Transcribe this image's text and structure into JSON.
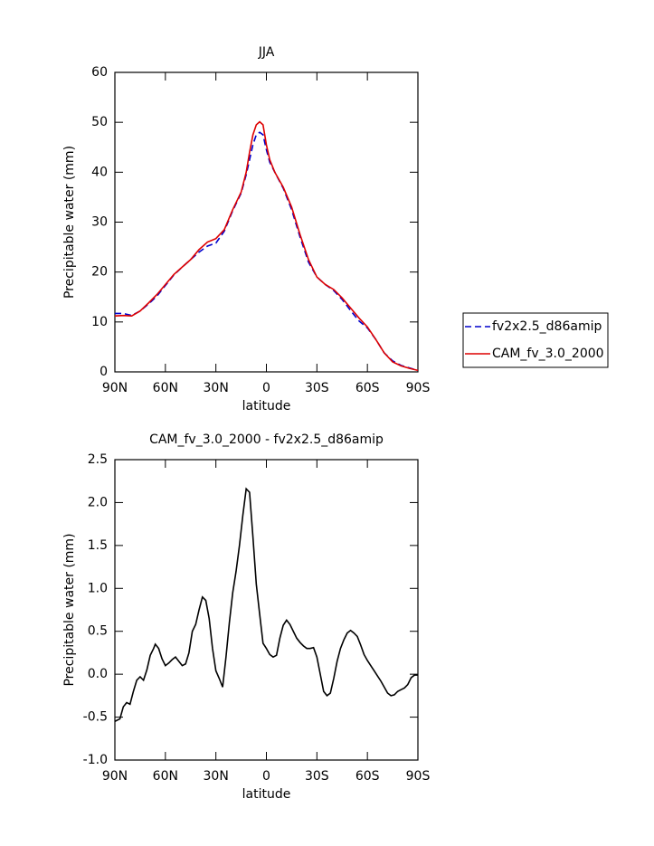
{
  "chart_data": [
    {
      "type": "line",
      "title": "JJA",
      "xlabel": "latitude",
      "ylabel": "Precipitable water (mm)",
      "x": [
        90,
        85,
        80,
        75,
        70,
        65,
        60,
        55,
        50,
        45,
        40,
        35,
        30,
        25,
        20,
        15,
        12,
        10,
        8,
        6,
        4,
        2,
        0,
        -2,
        -5,
        -10,
        -15,
        -20,
        -25,
        -30,
        -35,
        -40,
        -45,
        -50,
        -55,
        -60,
        -65,
        -70,
        -75,
        -80,
        -85,
        -90
      ],
      "series": [
        {
          "name": "fv2x2.5_d86amip",
          "color": "#0000cc",
          "dashed": true,
          "values": [
            11.7,
            11.7,
            11.3,
            12.2,
            13.6,
            15.2,
            17.3,
            19.4,
            21,
            22.5,
            24,
            25.2,
            25.8,
            28.2,
            32.3,
            35.8,
            39.5,
            42.5,
            45.5,
            47.5,
            48,
            47.5,
            44.5,
            42,
            40,
            36.8,
            32.5,
            27,
            22,
            19,
            17.5,
            16.3,
            14.5,
            12.3,
            10.2,
            8.8,
            6.5,
            3.8,
            2.2,
            1.3,
            0.8,
            0.3
          ]
        },
        {
          "name": "CAM_fv_3.0_2000",
          "color": "#dd0000",
          "dashed": false,
          "values": [
            11.2,
            11.3,
            11.2,
            12.2,
            13.8,
            15.5,
            17.5,
            19.5,
            21,
            22.5,
            24.5,
            26,
            26.7,
            28.5,
            32.5,
            36,
            40,
            44,
            47.5,
            49.5,
            50.1,
            49.5,
            45.5,
            42.5,
            40,
            37,
            33,
            27.5,
            22.5,
            19,
            17.5,
            16.5,
            14.8,
            12.8,
            10.8,
            9,
            6.5,
            3.8,
            2,
            1.2,
            0.7,
            0.3
          ]
        }
      ],
      "xlim": [
        90,
        -90
      ],
      "xticks": [
        {
          "value": 90,
          "label": "90N"
        },
        {
          "value": 60,
          "label": "60N"
        },
        {
          "value": 30,
          "label": "30N"
        },
        0,
        {
          "value": -30,
          "label": "30S"
        },
        {
          "value": -60,
          "label": "60S"
        },
        {
          "value": -90,
          "label": "90S"
        }
      ],
      "ylim": [
        0,
        60
      ],
      "yticks": [
        0,
        10,
        20,
        30,
        40,
        50,
        60
      ],
      "legend": "right"
    },
    {
      "type": "line",
      "title": "CAM_fv_3.0_2000 - fv2x2.5_d86amip",
      "xlabel": "latitude",
      "ylabel": "Precipitable water (mm)",
      "x": [
        90,
        87,
        85,
        83,
        81,
        79,
        77,
        75,
        73,
        71,
        69,
        67,
        66,
        64,
        62,
        60,
        58,
        56,
        54,
        52,
        50,
        48,
        46,
        44,
        42,
        40,
        38,
        36,
        34,
        32,
        30,
        28,
        26,
        24,
        22,
        20,
        18,
        16,
        14,
        12,
        10,
        8,
        6,
        4,
        2,
        0,
        -2,
        -4,
        -6,
        -8,
        -10,
        -12,
        -14,
        -16,
        -18,
        -20,
        -22,
        -24,
        -26,
        -28,
        -30,
        -32,
        -34,
        -36,
        -38,
        -40,
        -42,
        -44,
        -46,
        -48,
        -50,
        -52,
        -54,
        -56,
        -58,
        -60,
        -62,
        -64,
        -66,
        -68,
        -70,
        -72,
        -74,
        -76,
        -78,
        -80,
        -82,
        -84,
        -86,
        -88,
        -90
      ],
      "values": [
        -0.55,
        -0.52,
        -0.38,
        -0.33,
        -0.35,
        -0.2,
        -0.07,
        -0.03,
        -0.07,
        0.05,
        0.22,
        0.3,
        0.35,
        0.3,
        0.18,
        0.1,
        0.13,
        0.17,
        0.2,
        0.15,
        0.1,
        0.12,
        0.25,
        0.5,
        0.58,
        0.75,
        0.9,
        0.86,
        0.65,
        0.3,
        0.04,
        -0.05,
        -0.15,
        0.2,
        0.6,
        0.95,
        1.2,
        1.5,
        1.85,
        2.16,
        2.12,
        1.6,
        1.05,
        0.7,
        0.36,
        0.3,
        0.23,
        0.2,
        0.22,
        0.42,
        0.57,
        0.63,
        0.58,
        0.5,
        0.42,
        0.37,
        0.33,
        0.3,
        0.3,
        0.31,
        0.2,
        0.0,
        -0.2,
        -0.25,
        -0.22,
        -0.05,
        0.15,
        0.3,
        0.4,
        0.48,
        0.51,
        0.48,
        0.44,
        0.34,
        0.23,
        0.16,
        0.1,
        0.04,
        -0.02,
        -0.08,
        -0.15,
        -0.22,
        -0.25,
        -0.24,
        -0.2,
        -0.18,
        -0.16,
        -0.12,
        -0.04,
        -0.01,
        -0.01
      ],
      "color": "#000000",
      "xlim": [
        90,
        -90
      ],
      "xticks": [
        {
          "value": 90,
          "label": "90N"
        },
        {
          "value": 60,
          "label": "60N"
        },
        {
          "value": 30,
          "label": "30N"
        },
        0,
        {
          "value": -30,
          "label": "30S"
        },
        {
          "value": -60,
          "label": "60S"
        },
        {
          "value": -90,
          "label": "90S"
        }
      ],
      "ylim": [
        -1,
        2.5
      ],
      "yticks": [
        {
          "value": -1,
          "label": "-1.0"
        },
        -0.5,
        {
          "value": 0,
          "label": "0.0"
        },
        0.5,
        {
          "value": 1,
          "label": "1.0"
        },
        1.5,
        {
          "value": 2,
          "label": "2.0"
        },
        2.5
      ]
    }
  ]
}
